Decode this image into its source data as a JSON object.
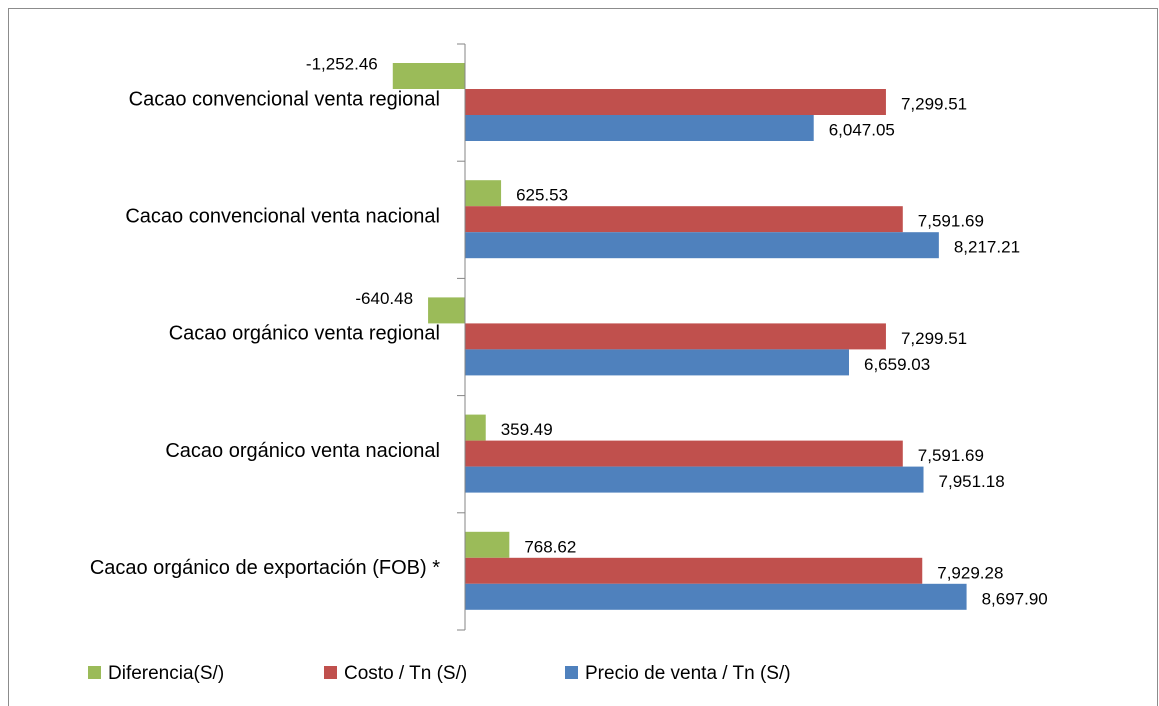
{
  "chart_data": {
    "type": "bar",
    "orientation": "horizontal",
    "categories": [
      "Cacao convencional  venta regional",
      "Cacao convencional  venta nacional",
      "Cacao orgánico venta regional",
      "Cacao orgánico venta nacional",
      "Cacao orgánico de exportación (FOB) *"
    ],
    "series": [
      {
        "name": "Diferencia(S/)",
        "color": "#9bbb59",
        "values": [
          -1252.46,
          625.53,
          -640.48,
          359.49,
          768.62
        ],
        "value_labels": [
          "-1,252.46",
          "625.53",
          "-640.48",
          "359.49",
          "768.62"
        ]
      },
      {
        "name": "Costo / Tn (S/)",
        "color": "#c0504d",
        "values": [
          7299.51,
          7591.69,
          7299.51,
          7591.69,
          7929.28
        ],
        "value_labels": [
          "7,299.51",
          "7,591.69",
          "7,299.51",
          "7,591.69",
          "7,929.28"
        ]
      },
      {
        "name": "Precio de venta / Tn (S/)",
        "color": "#4f81bd",
        "values": [
          6047.05,
          8217.21,
          6659.03,
          7951.18,
          8697.9
        ],
        "value_labels": [
          "6,047.05",
          "8,217.21",
          "6,659.03",
          "7,951.18",
          "8,697.90"
        ]
      }
    ],
    "xlim": [
      -1500,
      9000
    ],
    "legend": "bottom"
  }
}
